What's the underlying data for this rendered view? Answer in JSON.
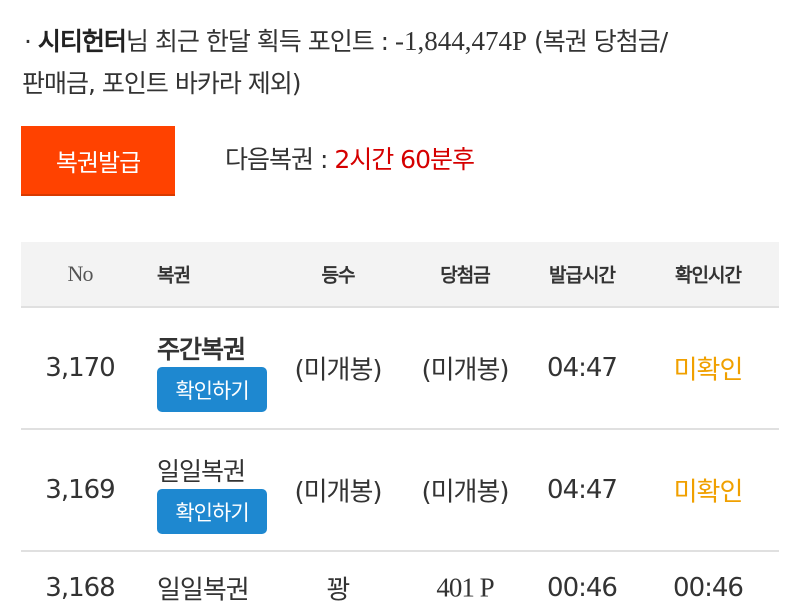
{
  "summary": {
    "bullet": "·",
    "user": "시티헌터",
    "text": "님 최근 한달 획득 포인트 : ",
    "points": "-1,844,474P",
    "note1": " (복권 당첨금/",
    "note2": "판매금, 포인트 바카라 제외)"
  },
  "issue_button": "복권발급",
  "next": {
    "label": "다음복권 : ",
    "value": "2시간 60분후"
  },
  "colors": {
    "issue": "#ff4200",
    "check": "#1e88d0",
    "unconfirmed": "#f0a000",
    "countdown": "#d50000"
  },
  "table": {
    "headers": [
      "No",
      "복권",
      "등수",
      "당첨금",
      "발급시간",
      "확인시간"
    ],
    "rows": [
      {
        "no": "3,170",
        "ticket": "주간복권",
        "button": "확인하기",
        "rank": "(미개봉)",
        "prize": "(미개봉)",
        "issued": "04:47",
        "checked": "미확인"
      },
      {
        "no": "3,169",
        "ticket": "일일복권",
        "button": "확인하기",
        "rank": "(미개봉)",
        "prize": "(미개봉)",
        "issued": "04:47",
        "checked": "미확인"
      },
      {
        "no": "3,168",
        "ticket": "일일복권",
        "rank": "꽝",
        "prize": "401 P",
        "issued": "00:46",
        "checked": "00:46"
      }
    ]
  }
}
